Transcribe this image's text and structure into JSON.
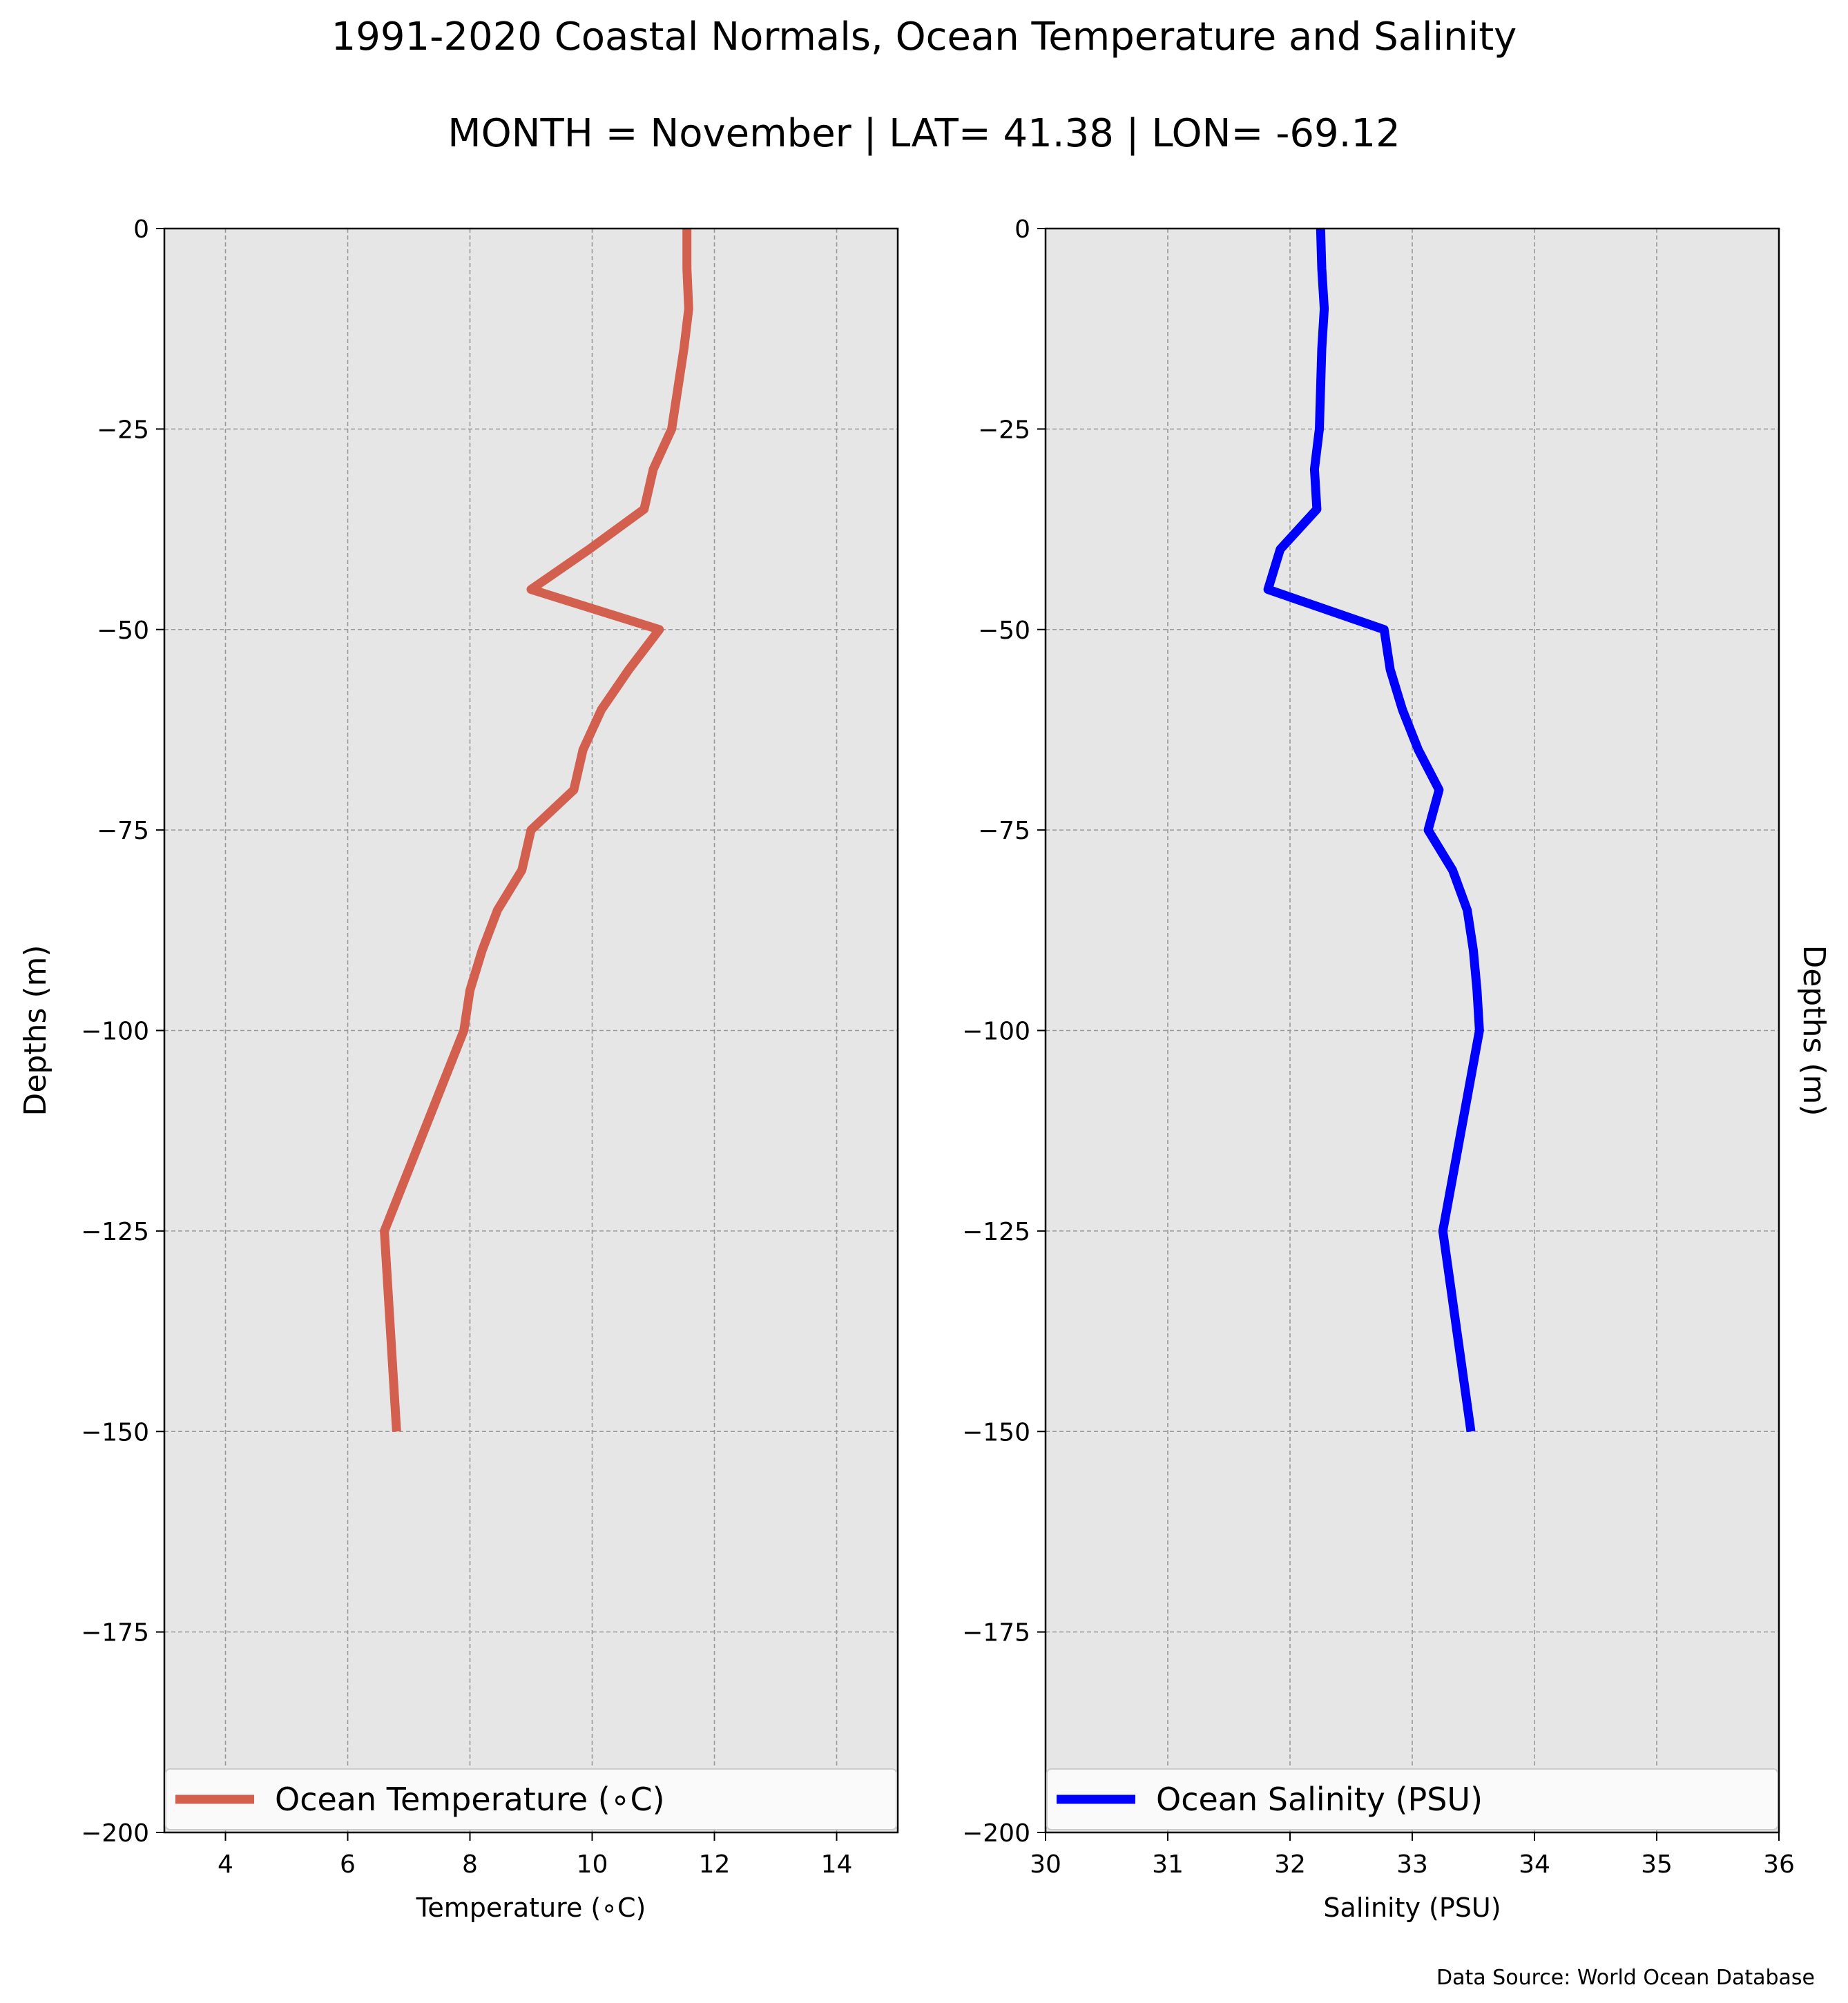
{
  "figure": {
    "title": "1991-2020 Coastal Normals, Ocean Temperature and Salinity",
    "subtitle": "MONTH = November | LAT= 41.38 | LON= -69.12",
    "source": "Data Source: World Ocean Database"
  },
  "colors": {
    "panel_bg": "#e6e6e6",
    "grid": "#999999",
    "temperature": "#d35f4e",
    "salinity": "#0000ff",
    "legend_bg": "#fafafa"
  },
  "chart_data": [
    {
      "type": "line",
      "id": "temperature",
      "xlabel": "Temperature (∘C)",
      "ylabel": "Depths (m)",
      "ylabel_side": "left",
      "xlim": [
        3,
        15
      ],
      "ylim": [
        -200,
        0
      ],
      "xticks": [
        "4",
        "6",
        "8",
        "10",
        "12",
        "14"
      ],
      "xtick_values": [
        4,
        6,
        8,
        10,
        12,
        14
      ],
      "yticks": [
        "0",
        "−25",
        "−50",
        "−75",
        "−100",
        "−125",
        "−150",
        "−175",
        "−200"
      ],
      "ytick_values": [
        0,
        -25,
        -50,
        -75,
        -100,
        -125,
        -150,
        -175,
        -200
      ],
      "grid": true,
      "legend": "lower center, full width",
      "series": [
        {
          "name": "Ocean Temperature (∘C)",
          "color": "#d35f4e",
          "x": [
            11.55,
            11.55,
            11.58,
            11.5,
            11.3,
            11.0,
            10.85,
            9.95,
            9.0,
            11.1,
            10.6,
            10.15,
            9.85,
            9.7,
            9.0,
            8.85,
            8.45,
            8.2,
            8.0,
            7.9,
            6.6,
            6.8
          ],
          "y": [
            0,
            -5,
            -10,
            -15,
            -25,
            -30,
            -35,
            -40,
            -45,
            -50,
            -55,
            -60,
            -65,
            -70,
            -75,
            -80,
            -85,
            -90,
            -95,
            -100,
            -125,
            -150
          ]
        }
      ]
    },
    {
      "type": "line",
      "id": "salinity",
      "xlabel": "Salinity (PSU)",
      "ylabel": "Depths (m)",
      "ylabel_side": "right",
      "xlim": [
        30,
        36
      ],
      "ylim": [
        -200,
        0
      ],
      "xticks": [
        "30",
        "31",
        "32",
        "33",
        "34",
        "35",
        "36"
      ],
      "xtick_values": [
        30,
        31,
        32,
        33,
        34,
        35,
        36
      ],
      "yticks": [
        "0",
        "−25",
        "−50",
        "−75",
        "−100",
        "−125",
        "−150",
        "−175",
        "−200"
      ],
      "ytick_values": [
        0,
        -25,
        -50,
        -75,
        -100,
        -125,
        -150,
        -175,
        -200
      ],
      "grid": true,
      "legend": "lower center, full width",
      "series": [
        {
          "name": "Ocean Salinity (PSU)",
          "color": "#0000ff",
          "x": [
            32.25,
            32.26,
            32.28,
            32.26,
            32.24,
            32.2,
            32.22,
            31.92,
            31.82,
            32.77,
            32.82,
            32.92,
            33.05,
            33.22,
            33.13,
            33.33,
            33.45,
            33.5,
            33.53,
            33.55,
            33.25,
            33.48
          ],
          "y": [
            0,
            -5,
            -10,
            -15,
            -25,
            -30,
            -35,
            -40,
            -45,
            -50,
            -55,
            -60,
            -65,
            -70,
            -75,
            -80,
            -85,
            -90,
            -95,
            -100,
            -125,
            -150
          ]
        }
      ]
    }
  ]
}
